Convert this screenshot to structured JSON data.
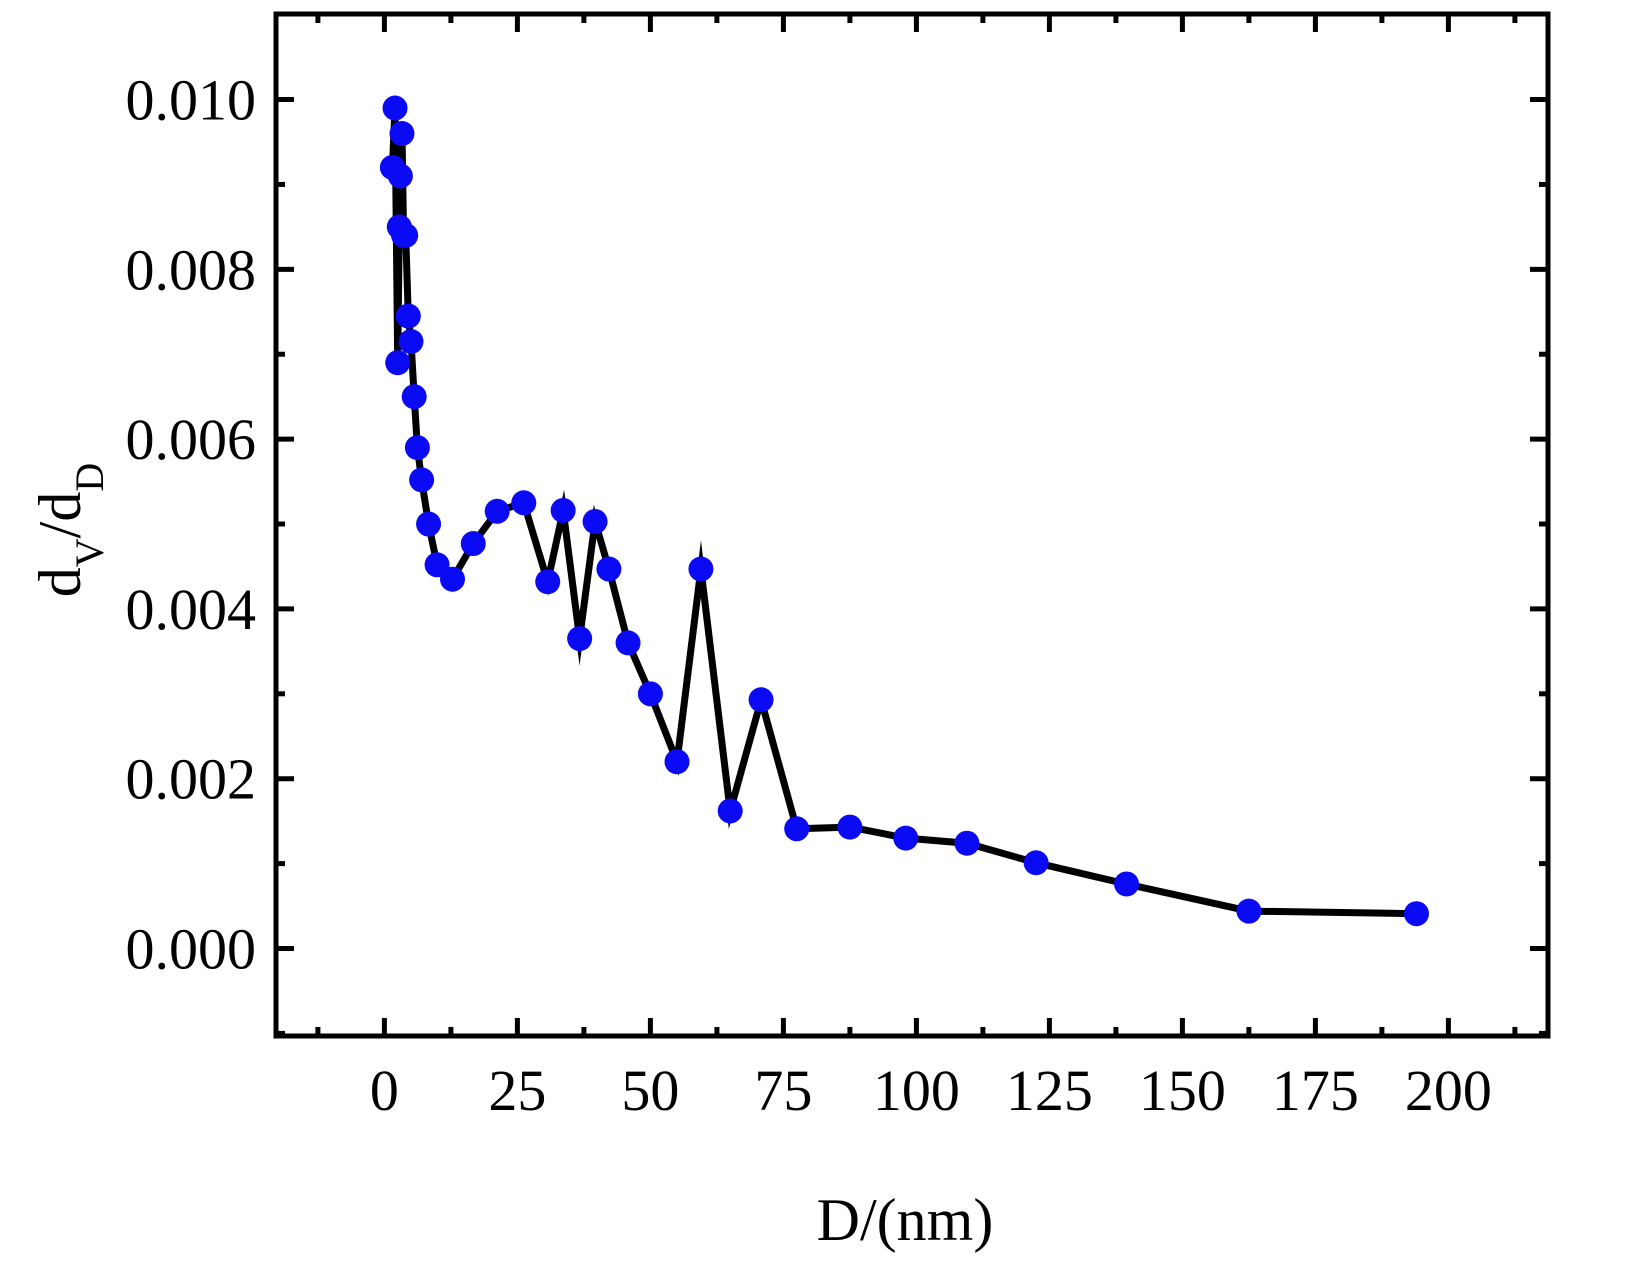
{
  "chart_data": {
    "type": "line",
    "title": "",
    "xlabel": "D/(nm)",
    "ylabel": {
      "base1": "d",
      "sub1": "V",
      "slash": "/",
      "base2": "d",
      "sub2": "D"
    },
    "xlim": [
      -20,
      215
    ],
    "ylim": [
      -0.001,
      0.011
    ],
    "x_ticks": [
      0,
      25,
      50,
      75,
      100,
      125,
      150,
      175,
      200
    ],
    "x_tick_labels": [
      "0",
      "25",
      "50",
      "75",
      "100",
      "125",
      "150",
      "175",
      "200"
    ],
    "y_ticks": [
      0.0,
      0.002,
      0.004,
      0.006,
      0.008,
      0.01
    ],
    "y_tick_labels": [
      "0.000",
      "0.002",
      "0.004",
      "0.006",
      "0.008",
      "0.010"
    ],
    "grid": false,
    "legend": "none",
    "series": [
      {
        "line_color": "#000000",
        "marker_color": "#0a0af5",
        "points": [
          [
            1.5,
            0.0092
          ],
          [
            2.0,
            0.0099
          ],
          [
            2.5,
            0.0069
          ],
          [
            2.8,
            0.0085
          ],
          [
            3.0,
            0.0091
          ],
          [
            3.3,
            0.0096
          ],
          [
            3.6,
            0.0084
          ],
          [
            4.0,
            0.0084
          ],
          [
            4.5,
            0.00745
          ],
          [
            5.0,
            0.00715
          ],
          [
            5.6,
            0.0065
          ],
          [
            6.2,
            0.0059
          ],
          [
            7.0,
            0.00552
          ],
          [
            8.3,
            0.005
          ],
          [
            9.9,
            0.00452
          ],
          [
            12.8,
            0.00435
          ],
          [
            16.7,
            0.00477
          ],
          [
            21.2,
            0.00515
          ],
          [
            26.2,
            0.00525
          ],
          [
            30.7,
            0.00432
          ],
          [
            33.6,
            0.00516
          ],
          [
            36.7,
            0.00365
          ],
          [
            39.6,
            0.00503
          ],
          [
            42.2,
            0.00447
          ],
          [
            45.8,
            0.0036
          ],
          [
            50.0,
            0.003
          ],
          [
            55.0,
            0.0022
          ],
          [
            59.5,
            0.00447
          ],
          [
            65.0,
            0.00162
          ],
          [
            70.8,
            0.00293
          ],
          [
            77.5,
            0.00141
          ],
          [
            87.5,
            0.00143
          ],
          [
            98.0,
            0.0013
          ],
          [
            109.5,
            0.00124
          ],
          [
            122.5,
            0.00101
          ],
          [
            139.5,
            0.00076
          ],
          [
            162.5,
            0.00044
          ],
          [
            194.0,
            0.00041
          ]
        ]
      }
    ]
  }
}
